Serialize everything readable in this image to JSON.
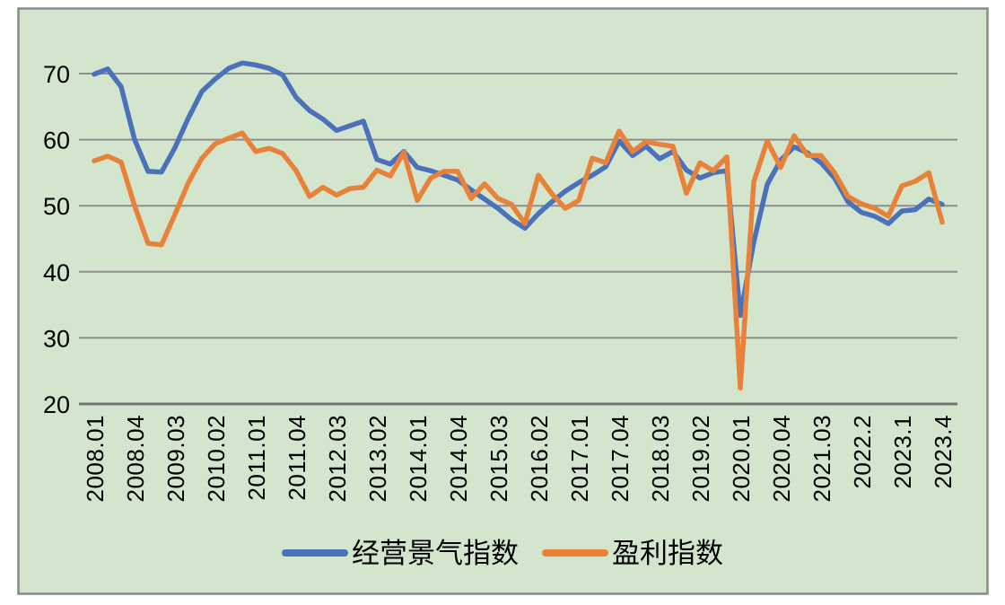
{
  "chart": {
    "background_color": "#d4e5ce",
    "outer_border_color": "#8a8a8a",
    "gridline_color": "#8e8e8e",
    "axis_line_color": "#757575",
    "tick_label_color": "#000000",
    "legend_text_color": "#000000"
  },
  "chart_data": {
    "type": "line",
    "title": "",
    "xlabel": "",
    "ylabel": "",
    "x_unit": "quarter",
    "x_start": "2008.01",
    "x_end": "2023.4",
    "points_count": 64,
    "ylim": [
      20,
      75
    ],
    "yticks": [
      20,
      30,
      40,
      50,
      60,
      70
    ],
    "grid": "horizontal",
    "legend_position": "bottom",
    "x_tick_labels": [
      {
        "i": 0,
        "label": "2008.01"
      },
      {
        "i": 3,
        "label": "2008.04"
      },
      {
        "i": 6,
        "label": "2009.03"
      },
      {
        "i": 9,
        "label": "2010.02"
      },
      {
        "i": 12,
        "label": "2011.01"
      },
      {
        "i": 15,
        "label": "2011.04"
      },
      {
        "i": 18,
        "label": "2012.03"
      },
      {
        "i": 21,
        "label": "2013.02"
      },
      {
        "i": 24,
        "label": "2014.01"
      },
      {
        "i": 27,
        "label": "2014.04"
      },
      {
        "i": 30,
        "label": "2015.03"
      },
      {
        "i": 33,
        "label": "2016.02"
      },
      {
        "i": 36,
        "label": "2017.01"
      },
      {
        "i": 39,
        "label": "2017.04"
      },
      {
        "i": 42,
        "label": "2018.03"
      },
      {
        "i": 45,
        "label": "2019.02"
      },
      {
        "i": 48,
        "label": "2020.01"
      },
      {
        "i": 51,
        "label": "2020.04"
      },
      {
        "i": 54,
        "label": "2021.03"
      },
      {
        "i": 57,
        "label": "2022.2"
      },
      {
        "i": 60,
        "label": "2023.1"
      },
      {
        "i": 63,
        "label": "2023.4"
      }
    ],
    "series": [
      {
        "id": "business-climate-index",
        "name": "经营景气指数",
        "color": "#4a71ba",
        "values": [
          69.9,
          70.7,
          68.0,
          60.0,
          55.2,
          55.1,
          58.8,
          63.3,
          67.3,
          69.2,
          70.8,
          71.6,
          71.3,
          70.8,
          69.8,
          66.4,
          64.4,
          63.1,
          61.4,
          62.1,
          62.8,
          57.0,
          56.3,
          58.2,
          55.8,
          55.3,
          54.6,
          53.9,
          52.4,
          51.0,
          49.6,
          47.9,
          46.6,
          48.8,
          50.6,
          52.2,
          53.5,
          54.6,
          55.9,
          59.8,
          57.6,
          59.0,
          57.1,
          58.2,
          55.4,
          54.2,
          55.0,
          55.3,
          33.4,
          44.5,
          53.2,
          56.9,
          58.9,
          58.0,
          56.5,
          54.2,
          50.6,
          49.0,
          48.4,
          47.3,
          49.2,
          49.4,
          51.0,
          50.2
        ]
      },
      {
        "id": "profit-index",
        "name": "盈利指数",
        "color": "#e8823a",
        "values": [
          56.8,
          57.5,
          56.6,
          50.0,
          44.3,
          44.1,
          48.7,
          53.5,
          57.2,
          59.4,
          60.2,
          61.0,
          58.2,
          58.7,
          57.9,
          55.3,
          51.4,
          52.8,
          51.6,
          52.6,
          52.8,
          55.4,
          54.5,
          58.1,
          50.8,
          54.2,
          55.2,
          55.2,
          51.1,
          53.3,
          51.1,
          50.2,
          47.3,
          54.6,
          51.8,
          49.6,
          50.8,
          57.2,
          56.5,
          61.3,
          58.2,
          59.7,
          59.3,
          59.0,
          51.9,
          56.5,
          55.3,
          57.4,
          22.4,
          53.6,
          59.8,
          55.8,
          60.6,
          57.6,
          57.6,
          55.0,
          51.4,
          50.3,
          49.6,
          48.4,
          53.0,
          53.7,
          55.0,
          47.5
        ]
      }
    ]
  }
}
